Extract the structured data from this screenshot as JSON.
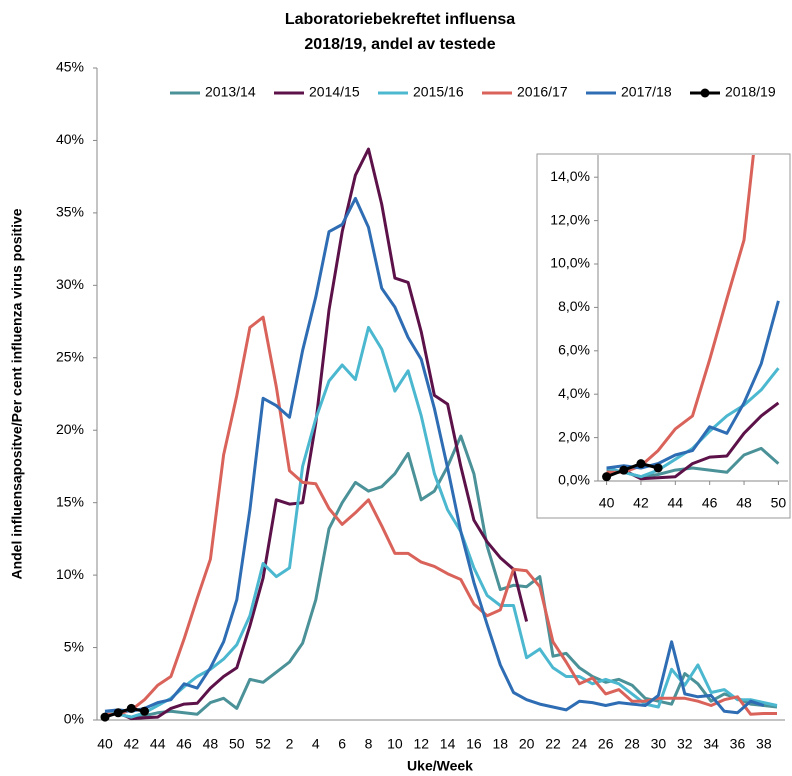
{
  "chart_data": [
    {
      "type": "line",
      "title": [
        "Laboratoriebekreftet influensa",
        "2018/19, andel av testede"
      ],
      "x_label": "Uke/Week",
      "y_label": "Andel influensapositve/Per cent influenza virus positive",
      "categories": [
        "40",
        null,
        "42",
        null,
        "44",
        null,
        "46",
        null,
        "48",
        null,
        "50",
        null,
        "52",
        null,
        "2",
        null,
        "4",
        null,
        "6",
        null,
        "8",
        null,
        "10",
        null,
        "12",
        null,
        "14",
        null,
        "16",
        null,
        "18",
        null,
        "20",
        null,
        "22",
        null,
        "24",
        null,
        "26",
        null,
        "28",
        null,
        "30",
        null,
        "32",
        null,
        "34",
        null,
        "36",
        null,
        "38",
        null
      ],
      "ylim": [
        0,
        45
      ],
      "yticks": [
        {
          "value": 0,
          "label": "0%"
        },
        {
          "value": 5,
          "label": "5%"
        },
        {
          "value": 10,
          "label": "10%"
        },
        {
          "value": 15,
          "label": "15%"
        },
        {
          "value": 20,
          "label": "20%"
        },
        {
          "value": 25,
          "label": "25%"
        },
        {
          "value": 30,
          "label": "30%"
        },
        {
          "value": 35,
          "label": "35%"
        },
        {
          "value": 40,
          "label": "40%"
        },
        {
          "value": 45,
          "label": "45%"
        }
      ],
      "grid": false,
      "legend": "top",
      "series": [
        {
          "name": "2013/14",
          "color": "#4a9198",
          "values": [
            0.5,
            0.4,
            0.2,
            0.3,
            0.5,
            0.6,
            0.5,
            0.4,
            1.2,
            1.5,
            0.8,
            2.8,
            2.6,
            3.3,
            4.0,
            5.3,
            8.3,
            13.2,
            15.0,
            16.4,
            15.8,
            16.1,
            17.0,
            18.4,
            15.2,
            15.8,
            17.5,
            19.6,
            17.0,
            12.0,
            9.0,
            9.3,
            9.2,
            9.9,
            4.4,
            4.6,
            3.6,
            3.0,
            2.6,
            2.8,
            2.4,
            1.5,
            1.3,
            1.1,
            3.2,
            2.5,
            1.3,
            1.8,
            1.5,
            1.1,
            1.0,
            0.9
          ]
        },
        {
          "name": "2014/15",
          "color": "#5c1249",
          "values": [
            0.3,
            0.5,
            0.1,
            0.15,
            0.2,
            0.8,
            1.1,
            1.15,
            2.2,
            3.0,
            3.6,
            6.5,
            9.8,
            15.2,
            14.9,
            15.0,
            20.5,
            28.3,
            33.7,
            37.6,
            39.4,
            35.6,
            30.5,
            30.2,
            26.8,
            22.4,
            21.8,
            17.5,
            13.8,
            12.3,
            11.2,
            10.4,
            6.8,
            null,
            null,
            null,
            null,
            null,
            null,
            null,
            null,
            null,
            null,
            null,
            null,
            null,
            null,
            null,
            null,
            null,
            null,
            null
          ]
        },
        {
          "name": "2015/16",
          "color": "#4bb8d0",
          "values": [
            0.6,
            0.4,
            0.2,
            0.5,
            1.0,
            1.5,
            2.3,
            3.0,
            3.5,
            4.2,
            5.2,
            7.2,
            10.8,
            9.9,
            10.5,
            17.5,
            20.8,
            23.4,
            24.5,
            23.5,
            27.1,
            25.6,
            22.7,
            24.1,
            21.0,
            17.0,
            14.5,
            13.0,
            10.5,
            8.6,
            7.9,
            7.9,
            4.3,
            4.9,
            3.6,
            3.0,
            3.0,
            2.5,
            2.8,
            2.5,
            1.8,
            1.1,
            0.9,
            3.5,
            2.4,
            3.8,
            1.9,
            2.1,
            1.4,
            1.4,
            1.2,
            1.0
          ]
        },
        {
          "name": "2016/17",
          "color": "#d9635a",
          "values": [
            0.4,
            0.4,
            0.7,
            1.4,
            2.4,
            3.0,
            5.6,
            8.4,
            11.1,
            18.3,
            22.4,
            27.1,
            27.8,
            23.0,
            17.2,
            16.4,
            16.3,
            14.6,
            13.5,
            14.3,
            15.2,
            13.4,
            11.5,
            11.5,
            10.9,
            10.6,
            10.1,
            9.7,
            8.0,
            7.2,
            7.6,
            10.4,
            10.3,
            9.2,
            5.4,
            4.0,
            2.5,
            2.9,
            1.8,
            2.1,
            1.3,
            1.3,
            1.5,
            1.5,
            1.5,
            1.3,
            1.0,
            1.4,
            1.6,
            0.4,
            0.45,
            0.45
          ]
        },
        {
          "name": "2017/18",
          "color": "#2e6db4",
          "values": [
            0.6,
            0.7,
            0.6,
            0.8,
            1.2,
            1.4,
            2.5,
            2.2,
            3.6,
            5.4,
            8.3,
            14.5,
            22.2,
            21.7,
            20.9,
            25.5,
            29.2,
            33.7,
            34.2,
            36.0,
            34.0,
            29.8,
            28.5,
            26.4,
            24.9,
            21.5,
            17.4,
            13.0,
            9.5,
            6.6,
            3.8,
            1.9,
            1.4,
            1.1,
            0.9,
            0.7,
            1.3,
            1.2,
            1.0,
            1.2,
            1.1,
            1.0,
            1.7,
            5.4,
            1.8,
            1.6,
            1.7,
            0.6,
            0.5,
            1.3,
            1.0,
            null
          ]
        },
        {
          "name": "2018/19",
          "color": "#000000",
          "marker": "circle",
          "values": [
            0.2,
            0.5,
            0.8,
            0.6,
            null,
            null,
            null,
            null,
            null,
            null,
            null,
            null,
            null,
            null,
            null,
            null,
            null,
            null,
            null,
            null,
            null,
            null,
            null,
            null,
            null,
            null,
            null,
            null,
            null,
            null,
            null,
            null,
            null,
            null,
            null,
            null,
            null,
            null,
            null,
            null,
            null,
            null,
            null,
            null,
            null,
            null,
            null,
            null,
            null,
            null,
            null,
            null
          ]
        }
      ]
    },
    {
      "type": "line",
      "x": [
        40,
        41,
        42,
        43,
        44,
        45,
        46,
        47,
        48,
        49,
        50
      ],
      "xlim": [
        39.5,
        50.5
      ],
      "xticks": [
        40,
        42,
        44,
        46,
        48,
        50
      ],
      "ylim": [
        0,
        15
      ],
      "yticks": [
        {
          "value": 0,
          "label": "0,0%"
        },
        {
          "value": 2,
          "label": "2,0%"
        },
        {
          "value": 4,
          "label": "4,0%"
        },
        {
          "value": 6,
          "label": "6,0%"
        },
        {
          "value": 8,
          "label": "8,0%"
        },
        {
          "value": 10,
          "label": "10,0%"
        },
        {
          "value": 12,
          "label": "12,0%"
        },
        {
          "value": 14,
          "label": "14,0%"
        }
      ]
    }
  ]
}
